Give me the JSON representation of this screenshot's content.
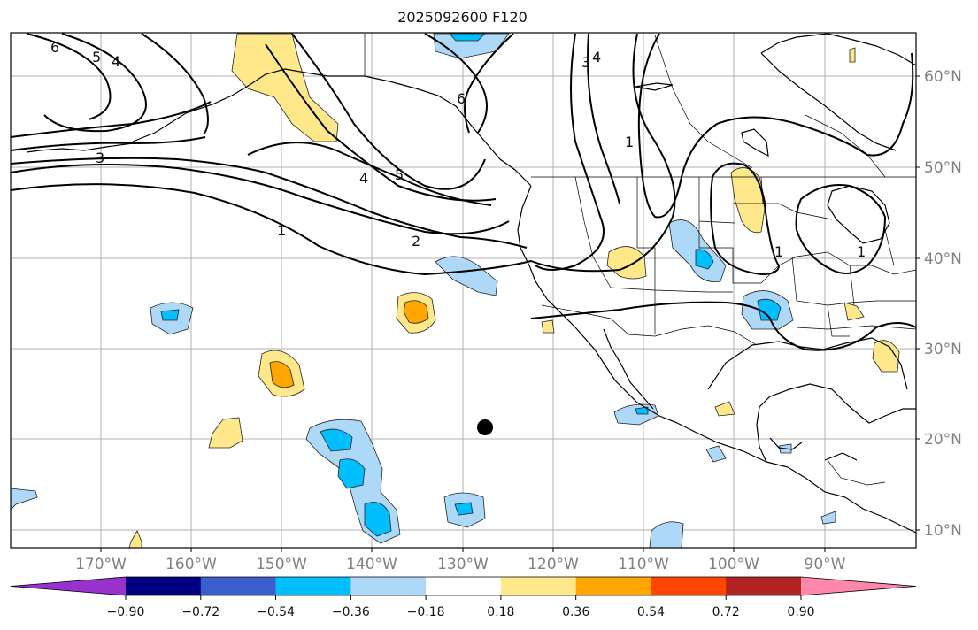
{
  "title": "2025092600 F120",
  "lon_labels": [
    "170°W",
    "160°W",
    "150°W",
    "140°W",
    "130°W",
    "120°W",
    "110°W",
    "100°W",
    "90°W"
  ],
  "lat_labels": [
    "60°N",
    "50°N",
    "40°N",
    "30°N",
    "20°N",
    "10°N"
  ],
  "colorbar": {
    "ticks": [
      "−0.90",
      "−0.72",
      "−0.54",
      "−0.36",
      "−0.18",
      "0.18",
      "0.36",
      "0.54",
      "0.72",
      "0.90"
    ],
    "colors": [
      "#9932cc",
      "#000080",
      "#3a5fcd",
      "#00bfff",
      "#add8f7",
      "#ffffff",
      "#ffe88a",
      "#ffa500",
      "#ff4500",
      "#b22222",
      "#ff88aa"
    ]
  },
  "contour_labels": [
    "6",
    "5",
    "4",
    "3",
    "1",
    "2",
    "4",
    "5",
    "6",
    "3",
    "4",
    "1",
    "1",
    "1"
  ],
  "marker": "storm-center-dot"
}
